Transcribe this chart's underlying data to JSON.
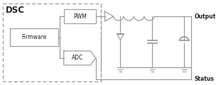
{
  "line_color": "#999999",
  "text_color": "#222222",
  "dsc_label": "DSC",
  "firmware_label": "Firmware",
  "pwm_label": "PWM",
  "adc_label": "ADC",
  "output_label": "Output",
  "status_label": "Status"
}
